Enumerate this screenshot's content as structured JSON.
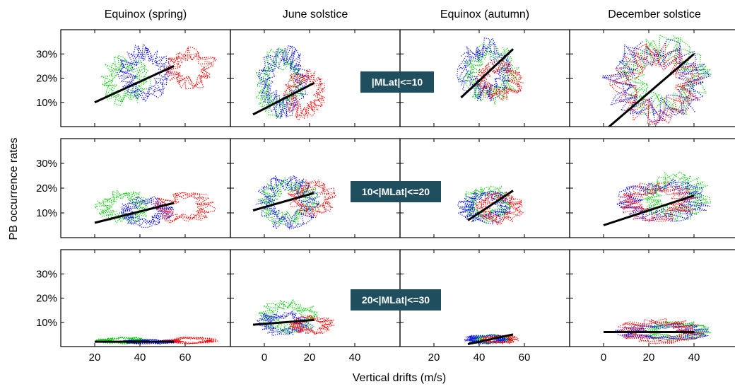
{
  "chart_data": {
    "type": "scatter",
    "ylabel": "PB occurrence rates",
    "xlabel": "Vertical drifts (m/s)",
    "columns": [
      "Equinox (spring)",
      "June solstice",
      "Equinox (autumn)",
      "December solstice"
    ],
    "rows": [
      "|MLat|<=10",
      "10<|MLat|<=20",
      "20<|MLat|<=30"
    ],
    "y_tick_labels": [
      "10%",
      "20%",
      "30%"
    ],
    "y_ticks": [
      10,
      20,
      30
    ],
    "ylim": [
      0,
      40
    ],
    "x_axes": [
      {
        "xlim": [
          5,
          80
        ],
        "ticks": [
          20,
          40,
          60
        ],
        "tick_labels": [
          "20",
          "40",
          "60"
        ]
      },
      {
        "xlim": [
          -15,
          60
        ],
        "ticks": [
          0,
          20,
          40
        ],
        "tick_labels": [
          "0",
          "20",
          "40"
        ]
      },
      {
        "xlim": [
          5,
          80
        ],
        "ticks": [
          20,
          40,
          60
        ],
        "tick_labels": [
          "20",
          "40",
          "60"
        ]
      },
      {
        "xlim": [
          -15,
          60
        ],
        "ticks": [
          0,
          20,
          40
        ],
        "tick_labels": [
          "0",
          "20",
          "40"
        ]
      }
    ],
    "series_colors": {
      "green": "#00cc00",
      "blue": "#0000ff",
      "red": "#ff0000",
      "fit": "#000000"
    },
    "label_box_color": "#1f4e5f",
    "panels": [
      [
        {
          "fit": [
            [
              20,
              10
            ],
            [
              55,
              25
            ]
          ],
          "clusters": {
            "green": [
              22,
              45,
              8,
              30
            ],
            "blue": [
              30,
              55,
              10,
              35
            ],
            "red": [
              50,
              75,
              15,
              33
            ]
          }
        },
        {
          "fit": [
            [
              -5,
              5
            ],
            [
              22,
              18
            ]
          ],
          "clusters": {
            "green": [
              -5,
              18,
              3,
              33
            ],
            "blue": [
              -3,
              20,
              3,
              35
            ],
            "red": [
              8,
              28,
              2,
              25
            ]
          }
        },
        {
          "fit": [
            [
              32,
              12
            ],
            [
              55,
              32
            ]
          ],
          "clusters": {
            "green": [
              32,
              58,
              8,
              35
            ],
            "blue": [
              30,
              55,
              10,
              37
            ],
            "red": [
              38,
              60,
              10,
              28
            ]
          }
        },
        {
          "fit": [
            [
              0,
              -2
            ],
            [
              40,
              30
            ]
          ],
          "clusters": {
            "green": [
              5,
              48,
              2,
              38
            ],
            "blue": [
              -2,
              48,
              0,
              37
            ],
            "red": [
              2,
              45,
              0,
              35
            ]
          }
        }
      ],
      [
        {
          "fit": [
            [
              20,
              6
            ],
            [
              55,
              14
            ]
          ],
          "clusters": {
            "green": [
              20,
              45,
              5,
              20
            ],
            "blue": [
              30,
              55,
              4,
              17
            ],
            "red": [
              45,
              75,
              5,
              19
            ]
          }
        },
        {
          "fit": [
            [
              -5,
              11
            ],
            [
              22,
              18
            ]
          ],
          "clusters": {
            "green": [
              -3,
              25,
              4,
              25
            ],
            "blue": [
              -5,
              25,
              3,
              26
            ],
            "red": [
              10,
              32,
              8,
              24
            ]
          }
        },
        {
          "fit": [
            [
              35,
              7
            ],
            [
              55,
              19
            ]
          ],
          "clusters": {
            "green": [
              32,
              55,
              6,
              22
            ],
            "blue": [
              30,
              55,
              5,
              20
            ],
            "red": [
              38,
              60,
              5,
              19
            ]
          }
        },
        {
          "fit": [
            [
              0,
              5
            ],
            [
              40,
              17
            ]
          ],
          "clusters": {
            "green": [
              15,
              48,
              6,
              27
            ],
            "blue": [
              5,
              48,
              6,
              24
            ],
            "red": [
              5,
              42,
              6,
              23
            ]
          }
        }
      ],
      [
        {
          "fit": [
            [
              20,
              2
            ],
            [
              55,
              2
            ]
          ],
          "clusters": {
            "green": [
              20,
              45,
              1,
              4
            ],
            "blue": [
              30,
              58,
              1,
              3
            ],
            "red": [
              50,
              75,
              1,
              4
            ]
          }
        },
        {
          "fit": [
            [
              -5,
              9
            ],
            [
              22,
              11
            ]
          ],
          "clusters": {
            "green": [
              -3,
              25,
              5,
              20
            ],
            "blue": [
              -5,
              22,
              4,
              15
            ],
            "red": [
              10,
              32,
              5,
              13
            ]
          }
        },
        {
          "fit": [
            [
              35,
              1
            ],
            [
              55,
              5
            ]
          ],
          "clusters": {
            "green": [
              35,
              55,
              1,
              5
            ],
            "blue": [
              32,
              55,
              1,
              5
            ],
            "red": [
              40,
              58,
              1,
              5
            ]
          }
        },
        {
          "fit": [
            [
              0,
              6
            ],
            [
              40,
              6
            ]
          ],
          "clusters": {
            "green": [
              15,
              48,
              2,
              11
            ],
            "blue": [
              5,
              48,
              2,
              10
            ],
            "red": [
              5,
              45,
              1,
              12
            ]
          }
        }
      ]
    ]
  }
}
